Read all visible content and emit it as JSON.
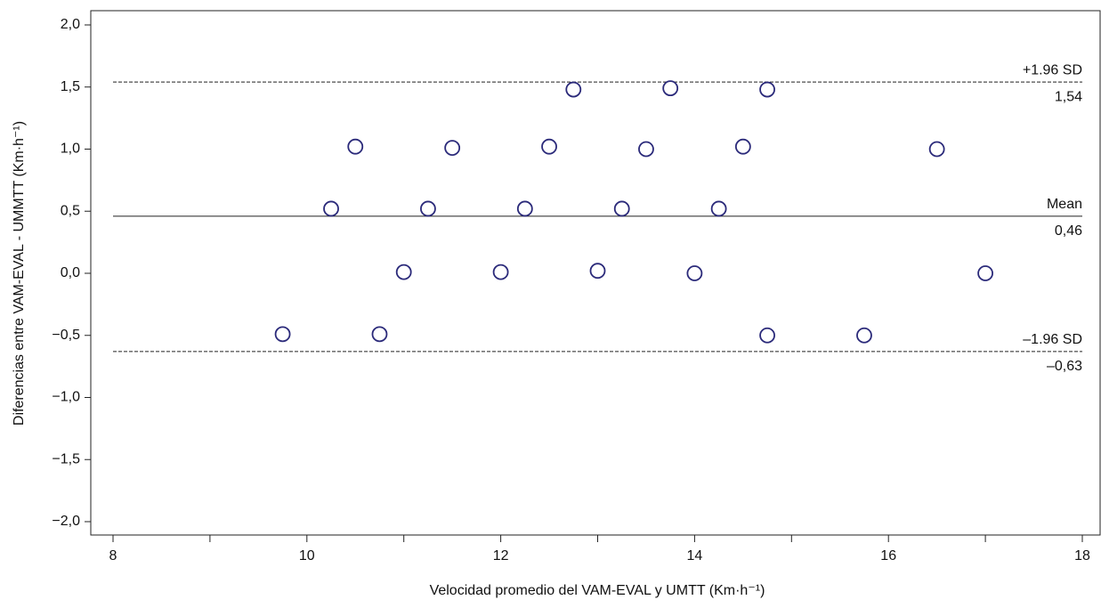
{
  "chart_data": {
    "type": "scatter",
    "x_label": "Velocidad promedio del VAM-EVAL y UMTT (Km·h⁻¹)",
    "y_label": "Diferencias  entre VAM-EVAL - UMMTT (Km·h⁻¹)",
    "xlim": [
      8,
      18
    ],
    "xticks": [
      8,
      10,
      12,
      14,
      16,
      18
    ],
    "xminorticks": [
      9,
      11,
      13,
      15,
      17
    ],
    "ylim": [
      -2,
      2
    ],
    "yticks": [
      {
        "value": 2,
        "label": "2,0"
      },
      {
        "value": 1.5,
        "label": "1,5"
      },
      {
        "value": 1,
        "label": "1,0"
      },
      {
        "value": 0.5,
        "label": "0,5"
      },
      {
        "value": 0,
        "label": "0,0"
      },
      {
        "value": -0.5,
        "label": "−0,5"
      },
      {
        "value": -1,
        "label": "−1,0"
      },
      {
        "value": -1.5,
        "label": "−1,5"
      },
      {
        "value": -2,
        "label": "−2,0"
      }
    ],
    "series": [
      {
        "color": "#2b2a7a",
        "x": [
          9.75,
          10.25,
          10.5,
          10.75,
          11,
          11.25,
          11.5,
          12,
          12.25,
          12.5,
          12.75,
          13,
          13.25,
          13.5,
          13.75,
          14,
          14.25,
          14.5,
          14.75,
          14.75,
          15.75,
          16.5,
          17
        ],
        "values": [
          -0.49,
          0.52,
          1.02,
          -0.49,
          0.01,
          0.52,
          1.01,
          0.01,
          0.52,
          1.02,
          1.48,
          0.02,
          0.52,
          1.0,
          1.49,
          0.0,
          0.52,
          1.02,
          1.48,
          -0.5,
          -0.5,
          1.0,
          0.0
        ]
      }
    ],
    "reference_lines": {
      "names": [
        "+1.96 SD",
        "Mean",
        "–1.96 SD"
      ],
      "values": [
        1.54,
        0.46,
        -0.63
      ],
      "value_labels": [
        "1,54",
        "0,46",
        "–0,63"
      ],
      "styles": [
        "dashed",
        "solid",
        "dashed"
      ]
    }
  }
}
